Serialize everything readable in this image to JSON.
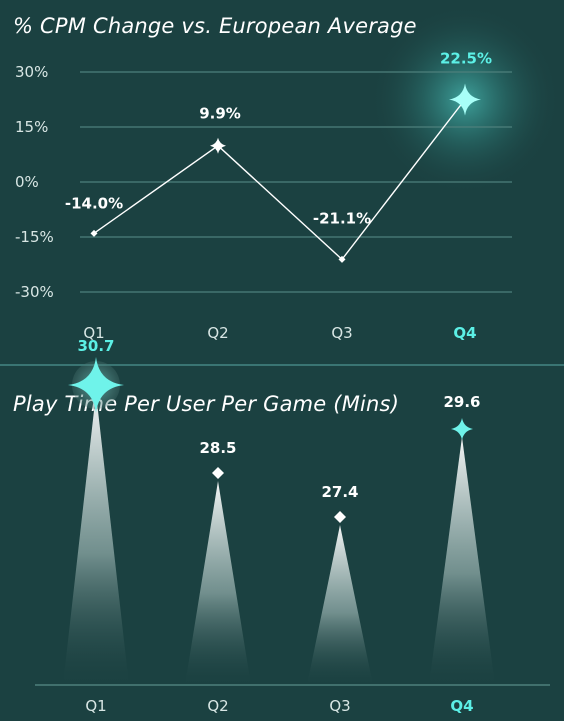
{
  "charts": {
    "cpm": {
      "title": "% CPM Change vs. European Average"
    },
    "playtime": {
      "title": "Play Time Per User Per Game (Mins)"
    }
  },
  "colors": {
    "background": "#1b4141",
    "accent": "#5cf0e6",
    "gridline": "#4e807c",
    "text": "#ffffff"
  },
  "chart_data": [
    {
      "type": "line",
      "title": "% CPM Change vs. European Average",
      "categories": [
        "Q1",
        "Q2",
        "Q3",
        "Q4"
      ],
      "values": [
        -14.0,
        9.9,
        -21.1,
        22.5
      ],
      "value_labels": [
        "-14.0%",
        "9.9%",
        "-21.1%",
        "22.5%"
      ],
      "y_ticks": [
        30,
        15,
        0,
        -15,
        -30
      ],
      "y_tick_labels": [
        "30%",
        "15%",
        "0%",
        "-15%",
        "-30%"
      ],
      "ylim": [
        -30,
        30
      ],
      "highlight_category": "Q4",
      "grid": true
    },
    {
      "type": "bar",
      "title": "Play Time Per User Per Game (Mins)",
      "categories": [
        "Q1",
        "Q2",
        "Q3",
        "Q4"
      ],
      "values": [
        30.7,
        28.5,
        27.4,
        29.6
      ],
      "value_labels": [
        "30.7",
        "28.5",
        "27.4",
        "29.6"
      ],
      "highlight_category": "Q4",
      "max_value_category": "Q1",
      "grid": false
    }
  ]
}
